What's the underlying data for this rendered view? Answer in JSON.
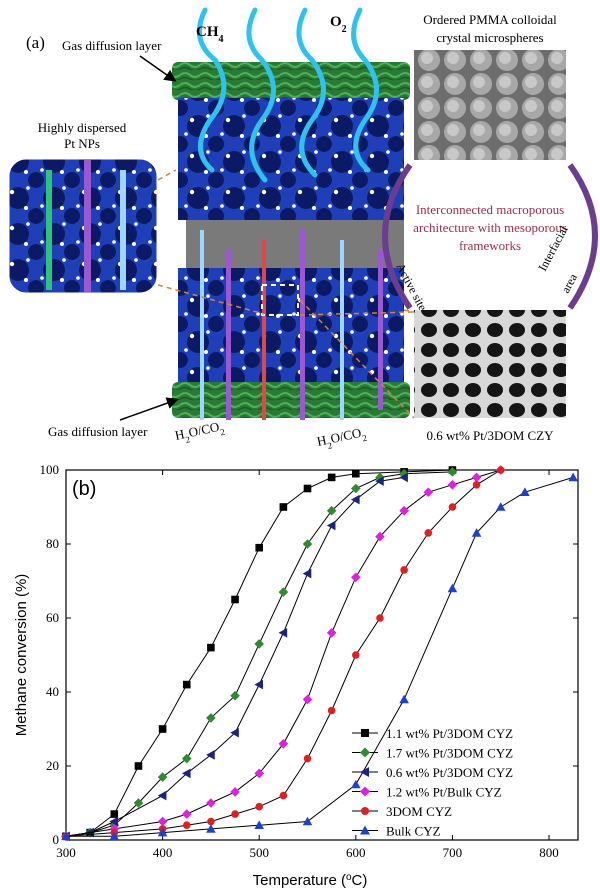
{
  "panel_a": {
    "label": "(a)",
    "gas_top": "CH",
    "gas_top_sub": "4",
    "gas_o2": "O",
    "gas_o2_sub": "2",
    "gdl_top": "Gas diffusion layer",
    "gdl_bottom": "Gas diffusion layer",
    "pt_label_1": "Highly dispersed",
    "pt_label_2": "Pt NPs",
    "pmma_1": "Ordered PMMA colloidal",
    "pmma_2": "crystal microspheres",
    "center_1": "Interconnected macroporous",
    "center_2": "architecture with mesoporous",
    "center_3": "frameworks",
    "active_sites": "Active sites",
    "interfacial_1": "Interfacial",
    "interfacial_2": "area",
    "product_left": "H",
    "product_left_sub1": "2",
    "product_left_mid": "O/CO",
    "product_left_sub2": "2",
    "product_right": "H",
    "product_right_sub1": "2",
    "product_right_mid": "O/CO",
    "product_right_sub2": "2",
    "catalyst_label": "0.6 wt% Pt/3DOM CZY",
    "colors": {
      "scaffold": "#2a4fd6",
      "green_layer": "#2f8a3c",
      "cyan_arrow": "#2ec3ef",
      "purple": "#6a3d8f",
      "orange_dash": "#d2843a",
      "red_text": "#9b2f4a"
    }
  },
  "chart_data": {
    "type": "line",
    "panel_label": "(b)",
    "xlabel": "Temperature (",
    "xlabel_sup": "o",
    "xlabel_end": "C)",
    "ylabel": "Methane conversion (%)",
    "xlim": [
      300,
      830
    ],
    "ylim": [
      0,
      100
    ],
    "xticks": [
      300,
      400,
      500,
      600,
      700,
      800
    ],
    "yticks": [
      0,
      20,
      40,
      60,
      80,
      100
    ],
    "legend_position": "bottom-right",
    "series": [
      {
        "name": "1.1 wt% Pt/3DOM CYZ",
        "color": "#000000",
        "marker": "square",
        "x": [
          300,
          325,
          350,
          375,
          400,
          425,
          450,
          475,
          500,
          525,
          550,
          575,
          600,
          650,
          700
        ],
        "y": [
          1,
          2,
          7,
          20,
          30,
          42,
          52,
          65,
          79,
          90,
          95,
          98,
          99,
          99.5,
          100
        ]
      },
      {
        "name": "1.7 wt% Pt/3DOM CYZ",
        "color": "#2e8b2e",
        "marker": "diamond",
        "x": [
          300,
          325,
          350,
          375,
          400,
          425,
          450,
          475,
          500,
          525,
          550,
          575,
          600,
          625,
          650,
          700
        ],
        "y": [
          1,
          2,
          4,
          10,
          17,
          22,
          33,
          39,
          53,
          67,
          80,
          89,
          95,
          98,
          99,
          99.5
        ]
      },
      {
        "name": "0.6 wt% Pt/3DOM CYZ",
        "color": "#1a237e",
        "marker": "triangle-left",
        "x": [
          300,
          325,
          350,
          400,
          425,
          450,
          475,
          500,
          525,
          550,
          575,
          600,
          625,
          650
        ],
        "y": [
          1,
          2,
          5,
          12,
          18,
          23,
          29,
          42,
          56,
          72,
          85,
          92,
          97,
          98
        ]
      },
      {
        "name": "1.2 wt% Pt/Bulk CYZ",
        "color": "#e020e0",
        "marker": "diamond",
        "x": [
          300,
          350,
          400,
          425,
          450,
          475,
          500,
          525,
          550,
          575,
          600,
          625,
          650,
          675,
          700,
          725,
          750
        ],
        "y": [
          1,
          3,
          5,
          7,
          10,
          13,
          18,
          26,
          38,
          56,
          71,
          82,
          89,
          94,
          96,
          98,
          100
        ]
      },
      {
        "name": "3DOM CYZ",
        "color": "#e02020",
        "marker": "circle",
        "x": [
          300,
          350,
          400,
          425,
          450,
          475,
          500,
          525,
          550,
          575,
          600,
          625,
          650,
          675,
          700,
          725,
          750
        ],
        "y": [
          1,
          2,
          3,
          4,
          5,
          7,
          9,
          12,
          22,
          35,
          50,
          60,
          73,
          83,
          90,
          96,
          100
        ]
      },
      {
        "name": "Bulk CYZ",
        "color": "#1e40d0",
        "marker": "triangle",
        "x": [
          300,
          350,
          400,
          450,
          500,
          550,
          600,
          650,
          700,
          725,
          750,
          775,
          825
        ],
        "y": [
          1,
          1,
          2,
          3,
          4,
          5,
          15,
          38,
          68,
          83,
          90,
          94,
          98
        ]
      }
    ]
  }
}
